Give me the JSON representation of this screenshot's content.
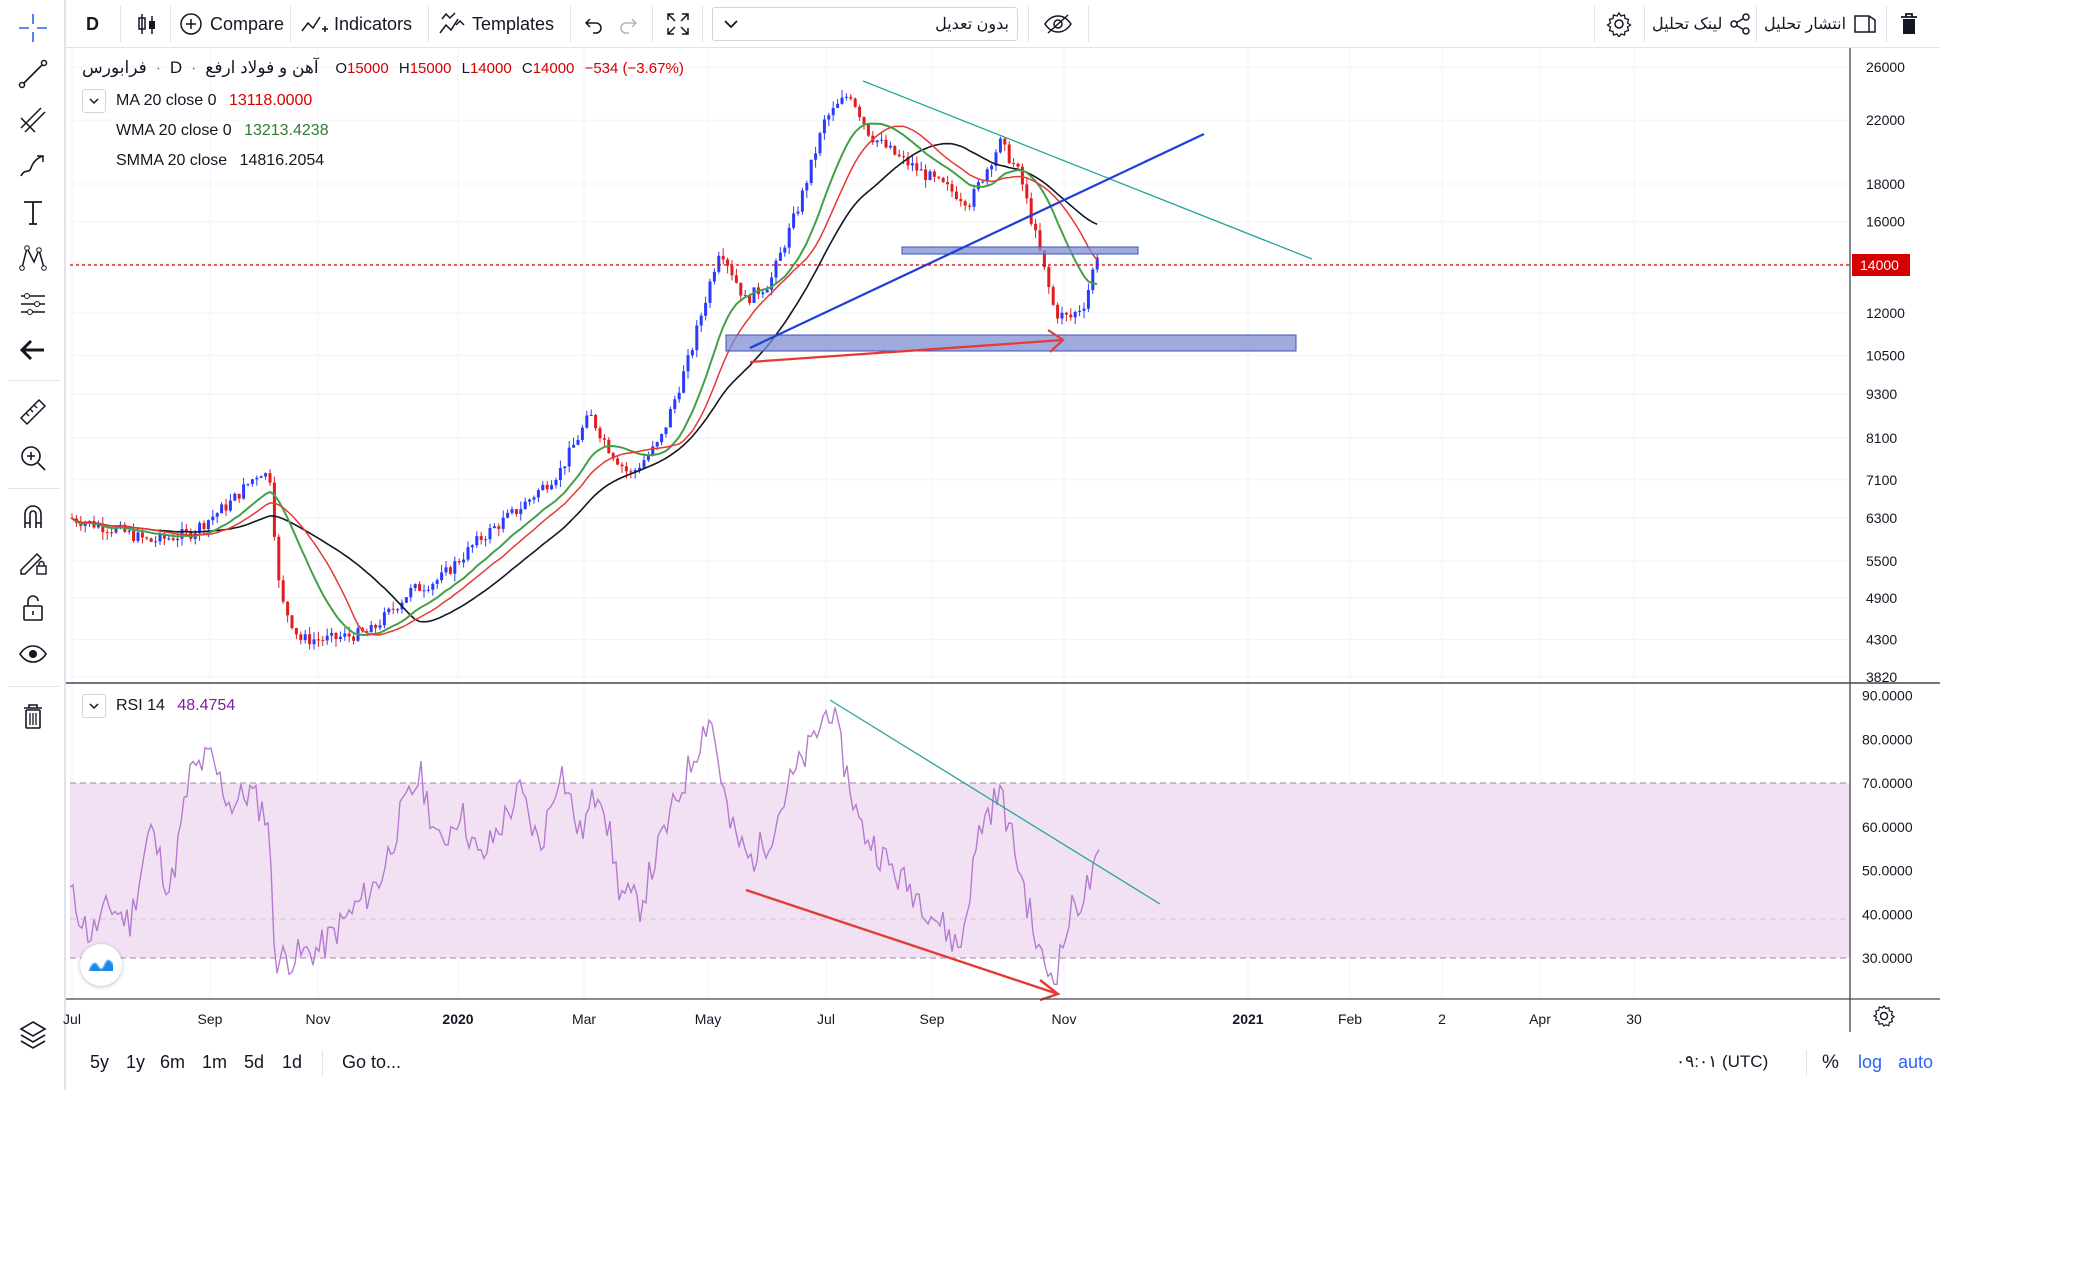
{
  "toolbar": {
    "interval": "D",
    "compare_label": "Compare",
    "indicators_label": "Indicators",
    "templates_label": "Templates",
    "adjust_select": "بدون تعدیل",
    "link_label": "لینک تحلیل",
    "publish_label": "انتشار تحلیل"
  },
  "symbol": {
    "name": "آهن و فولاد ارفع",
    "sep": "·",
    "interval": "D",
    "exchange": "فرابورس",
    "open_label": "O",
    "open": "15000",
    "high_label": "H",
    "high": "15000",
    "low_label": "L",
    "low": "14000",
    "close_label": "C",
    "close": "14000",
    "change": "−534 (−3.67%)"
  },
  "indicators": [
    {
      "label": "MA 20 close 0",
      "value": "13118.0000",
      "color": "#e53935"
    },
    {
      "label": "WMA 20 close 0",
      "value": "13213.4238",
      "color": "#43a047"
    },
    {
      "label": "SMMA 20 close",
      "value": "14816.2054",
      "color": "#131722"
    }
  ],
  "rsi": {
    "label": "RSI 14",
    "value": "48.4754",
    "color": "#7b1fa2"
  },
  "price_axis": {
    "ticks": [
      "26000",
      "22000",
      "18000",
      "16000",
      "14000",
      "12000",
      "10500",
      "9300",
      "8100",
      "7100",
      "6300",
      "5500",
      "4900",
      "4300",
      "3820"
    ],
    "current_price": "14000"
  },
  "rsi_axis": {
    "ticks": [
      "90.0000",
      "80.0000",
      "70.0000",
      "60.0000",
      "50.0000",
      "40.0000",
      "30.0000"
    ]
  },
  "time_axis": {
    "ticks": [
      "Jul",
      "Sep",
      "Nov",
      "2020",
      "Mar",
      "May",
      "Jul",
      "Sep",
      "Nov",
      "2021",
      "Feb",
      "2",
      "Apr",
      "30"
    ]
  },
  "bottom": {
    "ranges": [
      "5y",
      "1y",
      "6m",
      "1m",
      "5d",
      "1d"
    ],
    "goto": "Go to...",
    "time": "۰۹:۰۱ (UTC)",
    "percent": "%",
    "log": "log",
    "auto": "auto"
  },
  "colors": {
    "up": "#2b3aff",
    "down": "#e01e1e",
    "ma": "#e53935",
    "wma": "#43a047",
    "smma": "#131722",
    "rsi_line": "#b57bd0",
    "rsi_band": "#f1e1f3",
    "accent": "#2962ff",
    "price_label_bg": "#d50000"
  },
  "icons": [
    "crosshair-icon",
    "trendline-icon",
    "fib-icon",
    "brush-icon",
    "text-icon",
    "pattern-icon",
    "prediction-icon",
    "back-arrow-icon",
    "ruler-icon",
    "zoom-icon",
    "magnet-icon",
    "lock-draw-icon",
    "lock-icon",
    "eye-icon",
    "trash-icon",
    "layers-icon",
    "gear-icon",
    "share-icon",
    "hide-icon",
    "fullscreen-icon",
    "undo-icon",
    "redo-icon",
    "candles-icon"
  ]
}
